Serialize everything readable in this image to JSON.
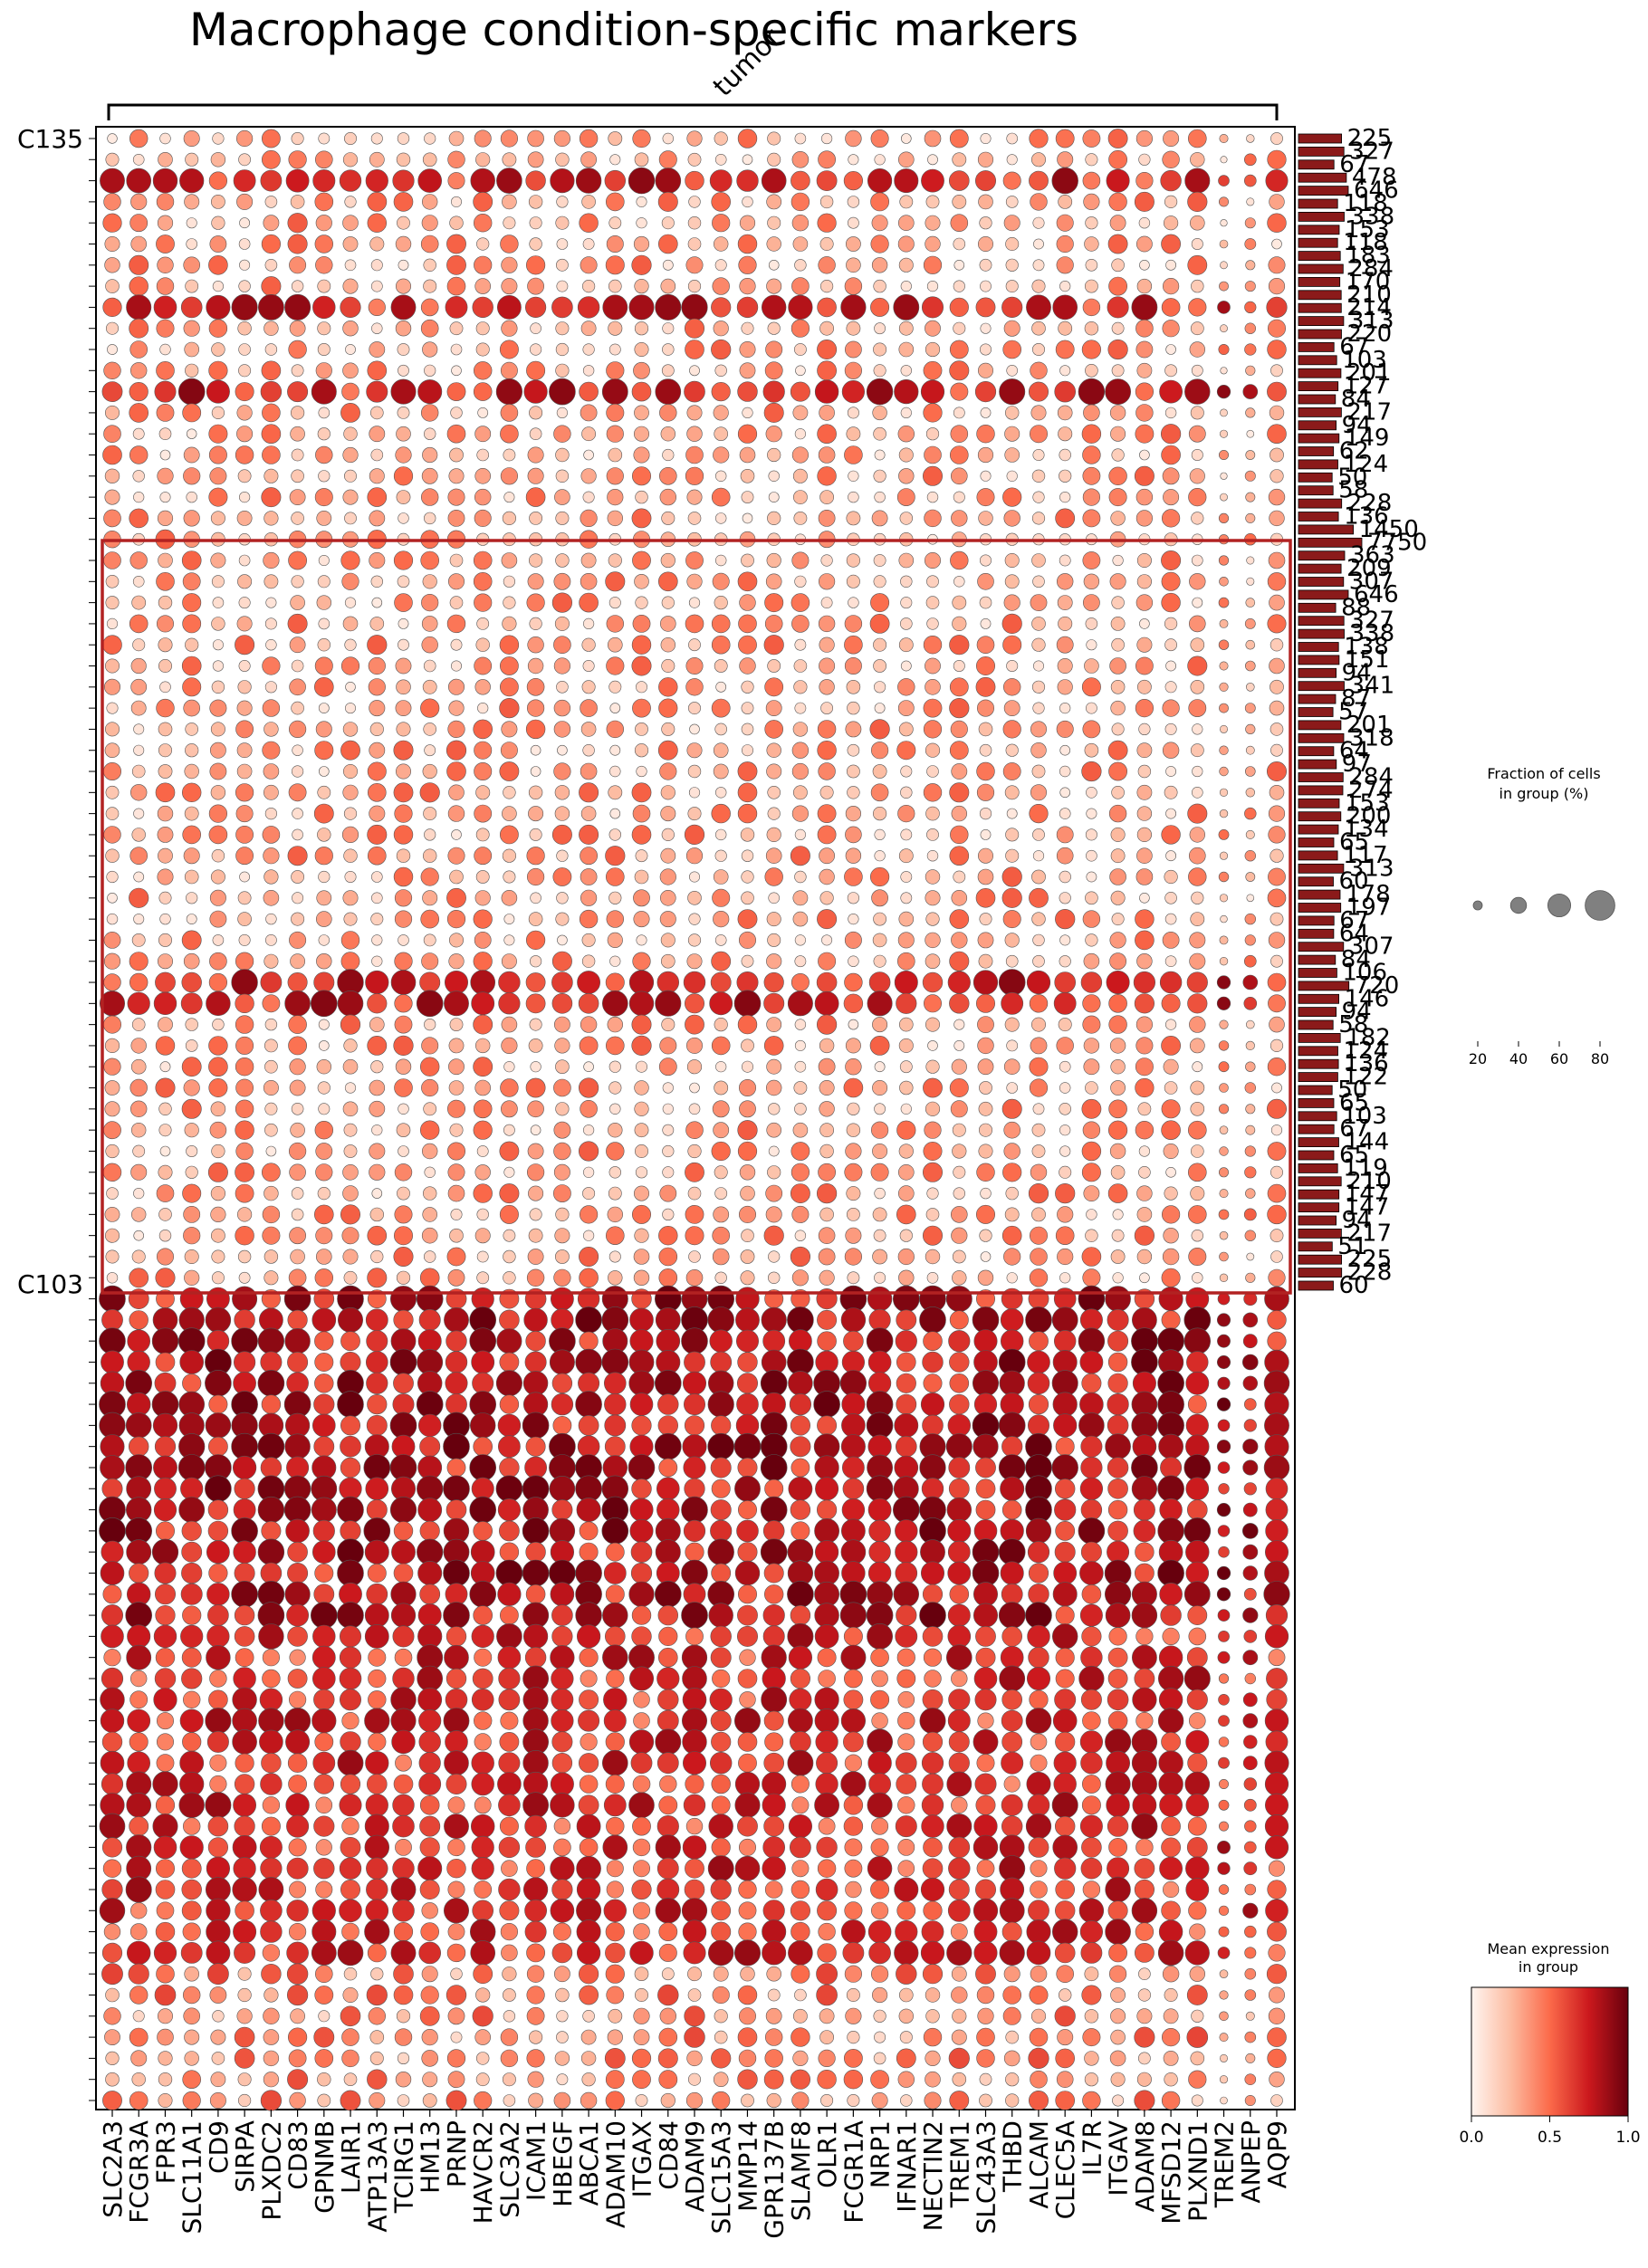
{
  "chart_data": {
    "type": "dotplot",
    "title": "Macrophage condition-specific markers",
    "bracket_label": "tumor",
    "genes": [
      "SLC2A3",
      "FCGR3A",
      "FPR3",
      "SLC11A1",
      "CD9",
      "SIRPA",
      "PLXDC2",
      "CD83",
      "GPNMB",
      "LAIR1",
      "ATP13A3",
      "TCIRG1",
      "HM13",
      "PRNP",
      "HAVCR2",
      "SLC3A2",
      "ICAM1",
      "HBEGF",
      "ABCA1",
      "ADAM10",
      "ITGAX",
      "CD84",
      "ADAM9",
      "SLC15A3",
      "MMP14",
      "GPR137B",
      "SLAMF8",
      "OLR1",
      "FCGR1A",
      "NRP1",
      "IFNAR1",
      "NECTIN2",
      "TREM1",
      "SLC43A3",
      "THBD",
      "ALCAM",
      "CLEC5A",
      "IL7R",
      "ITGAV",
      "ADAM8",
      "MFSD12",
      "PLXND1",
      "TREM2",
      "ANPEP",
      "AQP9"
    ],
    "first_row_label": "C135",
    "last_row_label": "C103",
    "row_count": 94,
    "bar_labels_visible": [
      "225",
      "327",
      "67",
      "478",
      "646",
      "118",
      "338",
      "153",
      "118",
      "183",
      "284",
      "170",
      "210",
      "214",
      "313",
      "220",
      "67",
      "103",
      "201",
      "127",
      "84",
      "217",
      "94",
      "149",
      "62",
      "124",
      "50",
      "58",
      "228",
      "136",
      "1450",
      "7750",
      "363",
      "209",
      "307",
      "646",
      "88",
      "327",
      "338",
      "138",
      "151",
      "94",
      "341",
      "87",
      "57",
      "201",
      "318",
      "64",
      "97",
      "284",
      "274",
      "153",
      "200",
      "134",
      "65",
      "117",
      "313",
      "60",
      "178",
      "197",
      "67",
      "64",
      "307",
      "84",
      "106",
      "720",
      "146",
      "94",
      "58",
      "182",
      "124",
      "136",
      "122",
      "50",
      "65",
      "103",
      "67",
      "144",
      "65",
      "119",
      "210",
      "147",
      "147",
      "94",
      "217",
      "51",
      "225",
      "228",
      "60"
    ],
    "size_legend": {
      "title": "Fraction of cells\nin group (%)",
      "ticks": [
        "20",
        "40",
        "60",
        "80"
      ]
    },
    "color_legend": {
      "title": "Mean expression\nin group",
      "ticks": [
        "0.0",
        "0.5",
        "1.0"
      ],
      "colormap": "Reds"
    },
    "colors": {
      "low": "#fff5f0",
      "mid": "#fb6a4a",
      "high": "#67000d",
      "box": "#b22222",
      "bar": "#8b1a1a"
    }
  }
}
